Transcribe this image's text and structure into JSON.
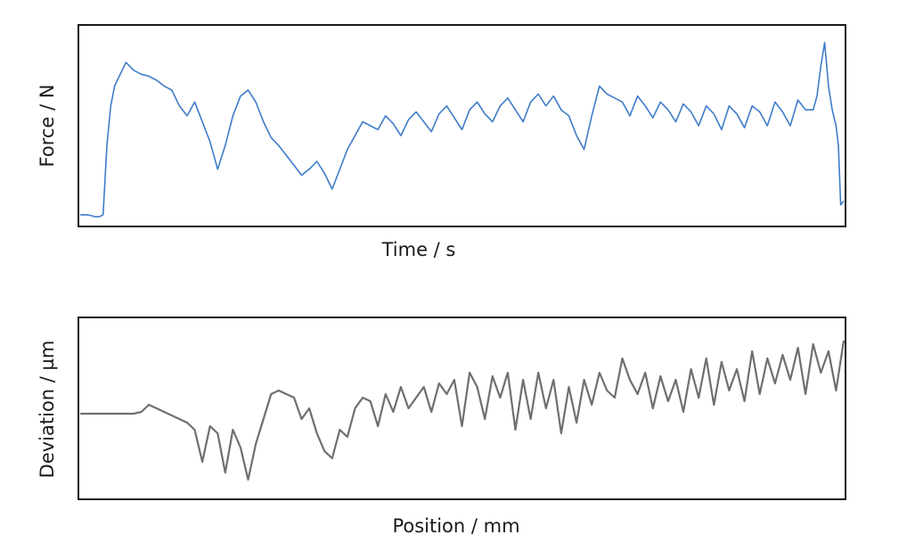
{
  "chart_data": [
    {
      "type": "line",
      "xlabel": "Time / s",
      "ylabel": "Force / N",
      "title": "",
      "grid": false,
      "ticks": false,
      "xlim": [
        0,
        100
      ],
      "ylim": [
        0,
        100
      ],
      "series": [
        {
          "color": "#3e7cc9",
          "x": [
            0,
            1,
            2,
            2.5,
            3,
            3.5,
            4,
            4.5,
            5,
            5.5,
            6,
            7,
            8,
            9,
            10,
            11,
            12,
            13,
            14,
            15,
            16,
            17,
            18,
            19,
            20,
            21,
            22,
            23,
            24,
            25,
            26,
            27,
            28,
            29,
            30,
            31,
            32,
            33,
            34,
            35,
            36,
            37,
            38,
            39,
            40,
            41,
            42,
            43,
            44,
            45,
            46,
            47,
            48,
            49,
            50,
            51,
            52,
            53,
            54,
            55,
            56,
            57,
            58,
            59,
            60,
            61,
            62,
            63,
            64,
            65,
            66,
            67,
            68,
            69,
            70,
            71,
            72,
            73,
            74,
            75,
            76,
            77,
            78,
            79,
            80,
            81,
            82,
            83,
            84,
            85,
            86,
            87,
            88,
            89,
            90,
            91,
            92,
            93,
            94,
            95,
            96,
            96.5,
            97,
            97.5,
            98,
            98.5,
            99,
            99.3,
            99.6,
            100
          ],
          "y": [
            5,
            5,
            4,
            4,
            5,
            40,
            60,
            70,
            74,
            78,
            82,
            78,
            76,
            75,
            73,
            70,
            68,
            60,
            55,
            62,
            52,
            42,
            28,
            40,
            55,
            65,
            68,
            62,
            52,
            44,
            40,
            35,
            30,
            25,
            28,
            32,
            26,
            18,
            28,
            38,
            45,
            52,
            50,
            48,
            55,
            51,
            45,
            53,
            57,
            52,
            47,
            56,
            60,
            54,
            48,
            58,
            62,
            56,
            52,
            60,
            64,
            58,
            52,
            62,
            66,
            60,
            65,
            58,
            55,
            45,
            38,
            55,
            70,
            66,
            64,
            62,
            55,
            65,
            60,
            54,
            62,
            58,
            52,
            61,
            57,
            50,
            60,
            56,
            48,
            60,
            56,
            49,
            60,
            57,
            50,
            62,
            57,
            50,
            63,
            58,
            58,
            65,
            80,
            92,
            70,
            58,
            50,
            40,
            10,
            12
          ]
        }
      ]
    },
    {
      "type": "line",
      "xlabel": "Position / mm",
      "ylabel": "Deviation / µm",
      "title": "",
      "grid": false,
      "ticks": false,
      "xlim": [
        0,
        100
      ],
      "ylim": [
        0,
        100
      ],
      "series": [
        {
          "color": "#6f6f73",
          "x": [
            0,
            3,
            5,
            7,
            8,
            9,
            10,
            11,
            12,
            13,
            14,
            15,
            16,
            17,
            18,
            19,
            20,
            21,
            22,
            23,
            24,
            25,
            26,
            27,
            28,
            29,
            30,
            31,
            32,
            33,
            34,
            35,
            36,
            37,
            38,
            39,
            40,
            41,
            42,
            43,
            44,
            45,
            46,
            47,
            48,
            49,
            50,
            51,
            52,
            53,
            54,
            55,
            56,
            57,
            58,
            59,
            60,
            61,
            62,
            63,
            64,
            65,
            66,
            67,
            68,
            69,
            70,
            71,
            72,
            73,
            74,
            75,
            76,
            77,
            78,
            79,
            80,
            81,
            82,
            83,
            84,
            85,
            86,
            87,
            88,
            89,
            90,
            91,
            92,
            93,
            94,
            95,
            96,
            97,
            98,
            99,
            100
          ],
          "y": [
            47,
            47,
            47,
            47,
            48,
            52,
            50,
            48,
            46,
            44,
            42,
            38,
            20,
            40,
            36,
            14,
            38,
            28,
            10,
            30,
            44,
            58,
            60,
            58,
            56,
            44,
            50,
            36,
            26,
            22,
            38,
            34,
            50,
            56,
            54,
            40,
            58,
            48,
            62,
            50,
            56,
            62,
            48,
            64,
            58,
            66,
            40,
            70,
            62,
            44,
            68,
            56,
            70,
            38,
            66,
            44,
            70,
            50,
            66,
            36,
            62,
            42,
            66,
            52,
            70,
            60,
            56,
            78,
            66,
            58,
            70,
            50,
            68,
            54,
            66,
            48,
            72,
            56,
            78,
            52,
            76,
            60,
            72,
            54,
            82,
            58,
            78,
            64,
            80,
            66,
            84,
            58,
            86,
            70,
            82,
            60,
            88
          ]
        }
      ]
    }
  ]
}
